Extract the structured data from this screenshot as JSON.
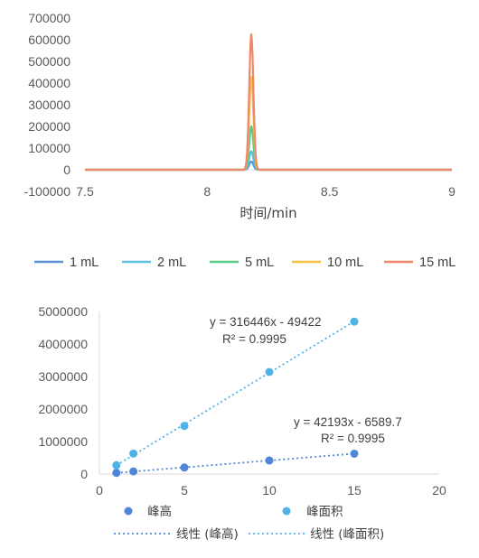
{
  "chart_data": [
    {
      "type": "line",
      "xlabel": "时间/min",
      "ylabel": "",
      "xlim": [
        7.5,
        9
      ],
      "ylim": [
        -100000,
        700000
      ],
      "xticks": [
        "7.5",
        "8",
        "8.5",
        "9"
      ],
      "yticks": [
        "700000",
        "600000",
        "500000",
        "400000",
        "300000",
        "200000",
        "100000",
        "0",
        "-100000"
      ],
      "peak_time": 8.18,
      "series": [
        {
          "name": "1 mL",
          "peak": 38000,
          "color": "#5b8fd6"
        },
        {
          "name": "2 mL",
          "peak": 85000,
          "color": "#5cc0e3"
        },
        {
          "name": "5 mL",
          "peak": 200000,
          "color": "#57c98a"
        },
        {
          "name": "10 mL",
          "peak": 428000,
          "color": "#f7c144"
        },
        {
          "name": "15 mL",
          "peak": 625000,
          "color": "#f0876a"
        }
      ],
      "legend": "bottom"
    },
    {
      "type": "scatter",
      "xlim": [
        0,
        20
      ],
      "ylim": [
        0,
        5000000
      ],
      "xticks": [
        "0",
        "5",
        "10",
        "15",
        "20"
      ],
      "yticks": [
        "5000000",
        "4000000",
        "3000000",
        "2000000",
        "1000000",
        "0"
      ],
      "series": [
        {
          "name": "峰高",
          "color": "#4f86d9",
          "x": [
            1,
            2,
            5,
            10,
            15
          ],
          "y": [
            36000,
            80000,
            200000,
            416000,
            626000
          ]
        },
        {
          "name": "峰面积",
          "color": "#4fb3e8",
          "x": [
            1,
            2,
            5,
            10,
            15
          ],
          "y": [
            270000,
            630000,
            1480000,
            3140000,
            4690000
          ]
        }
      ],
      "trendlines": [
        {
          "name": "线性 (峰高)",
          "color": "#4f86d9",
          "slope": 42193,
          "intercept": -6589.7,
          "equation": "y = 42193x - 6589.7",
          "r2": "R² = 0.9995"
        },
        {
          "name": "线性 (峰面积)",
          "color": "#4fb3e8",
          "slope": 316446,
          "intercept": -49422,
          "equation": "y = 316446x - 49422",
          "r2": "R² = 0.9995"
        }
      ],
      "legend": "bottom"
    }
  ]
}
